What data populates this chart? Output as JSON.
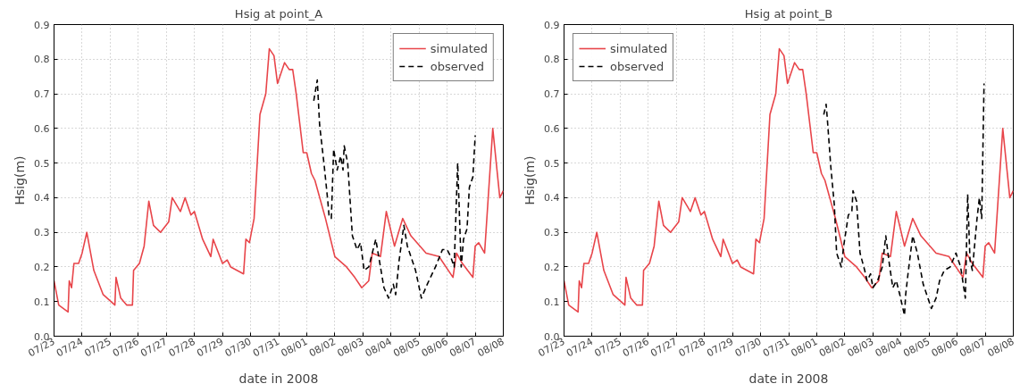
{
  "chart_data": [
    {
      "type": "line",
      "title": "Hsig at point_A",
      "xlabel": "date in 2008",
      "ylabel": "Hsig(m)",
      "xlim": [
        "2008-07-23",
        "2008-08-08"
      ],
      "xticks": [
        {
          "value": "2008-07-23",
          "label": "07/23"
        },
        {
          "value": "2008-07-24",
          "label": "07/24"
        },
        {
          "value": "2008-07-25",
          "label": "07/25"
        },
        {
          "value": "2008-07-26",
          "label": "07/26"
        },
        {
          "value": "2008-07-27",
          "label": "07/27"
        },
        {
          "value": "2008-07-28",
          "label": "07/28"
        },
        {
          "value": "2008-07-29",
          "label": "07/29"
        },
        {
          "value": "2008-07-30",
          "label": "07/30"
        },
        {
          "value": "2008-07-31",
          "label": "07/31"
        },
        {
          "value": "2008-08-01",
          "label": "08/01"
        },
        {
          "value": "2008-08-02",
          "label": "08/02"
        },
        {
          "value": "2008-08-03",
          "label": "08/03"
        },
        {
          "value": "2008-08-04",
          "label": "08/04"
        },
        {
          "value": "2008-08-05",
          "label": "08/05"
        },
        {
          "value": "2008-08-06",
          "label": "08/06"
        },
        {
          "value": "2008-08-07",
          "label": "08/07"
        },
        {
          "value": "2008-08-08",
          "label": "08/08"
        }
      ],
      "ylim": [
        0,
        0.9
      ],
      "yticks": [
        {
          "value": 0,
          "label": "0.0"
        },
        0.1,
        0.2,
        0.3,
        0.4,
        0.5,
        0.6,
        0.7,
        0.8,
        0.9
      ],
      "grid": true,
      "legend": "top right",
      "marker": "none",
      "series": [
        {
          "name": "simulated",
          "color": "#e8454a",
          "line_style": "solid",
          "x": [
            "2008-07-23T00:00",
            "2008-07-23T04:00",
            "2008-07-23T12:00",
            "2008-07-23T13:00",
            "2008-07-23T15:00",
            "2008-07-23T17:00",
            "2008-07-23T21:00",
            "2008-07-24T00:00",
            "2008-07-24T04:00",
            "2008-07-24T10:00",
            "2008-07-24T18:00",
            "2008-07-25T04:00",
            "2008-07-25T05:00",
            "2008-07-25T09:00",
            "2008-07-25T14:00",
            "2008-07-25T19:00",
            "2008-07-25T20:00",
            "2008-07-26T01:00",
            "2008-07-26T05:00",
            "2008-07-26T09:00",
            "2008-07-26T13:00",
            "2008-07-26T19:00",
            "2008-07-27T02:00",
            "2008-07-27T05:00",
            "2008-07-27T12:00",
            "2008-07-27T16:00",
            "2008-07-27T21:00",
            "2008-07-28T00:00",
            "2008-07-28T07:00",
            "2008-07-28T14:00",
            "2008-07-28T16:00",
            "2008-07-29T00:00",
            "2008-07-29T04:00",
            "2008-07-29T07:00",
            "2008-07-29T18:00",
            "2008-07-29T20:00",
            "2008-07-29T23:00",
            "2008-07-30T03:00",
            "2008-07-30T08:00",
            "2008-07-30T13:00",
            "2008-07-30T16:00",
            "2008-07-30T20:00",
            "2008-07-30T23:00",
            "2008-07-31T05:00",
            "2008-07-31T09:00",
            "2008-07-31T12:00",
            "2008-07-31T15:00",
            "2008-07-31T21:00",
            "2008-08-01T00:00",
            "2008-08-01T04:00",
            "2008-08-01T07:00",
            "2008-08-01T16:00",
            "2008-08-02T00:00",
            "2008-08-02T10:00",
            "2008-08-02T17:00",
            "2008-08-02T23:00",
            "2008-08-03T05:00",
            "2008-08-03T08:00",
            "2008-08-03T15:00",
            "2008-08-03T20:00",
            "2008-08-04T03:00",
            "2008-08-04T10:00",
            "2008-08-04T17:00",
            "2008-08-05T06:00",
            "2008-08-05T17:00",
            "2008-08-06T05:00",
            "2008-08-06T08:00",
            "2008-08-06T13:00",
            "2008-08-06T22:00",
            "2008-08-07T00:00",
            "2008-08-07T03:00",
            "2008-08-07T08:00",
            "2008-08-07T15:00",
            "2008-08-07T21:00",
            "2008-08-08T00:00"
          ],
          "values": [
            0.16,
            0.09,
            0.07,
            0.16,
            0.14,
            0.21,
            0.21,
            0.24,
            0.3,
            0.19,
            0.12,
            0.09,
            0.17,
            0.11,
            0.09,
            0.09,
            0.19,
            0.21,
            0.26,
            0.39,
            0.32,
            0.3,
            0.33,
            0.4,
            0.36,
            0.4,
            0.35,
            0.36,
            0.28,
            0.23,
            0.28,
            0.21,
            0.22,
            0.2,
            0.18,
            0.28,
            0.27,
            0.34,
            0.64,
            0.7,
            0.83,
            0.81,
            0.73,
            0.79,
            0.77,
            0.77,
            0.7,
            0.53,
            0.53,
            0.47,
            0.45,
            0.34,
            0.23,
            0.2,
            0.17,
            0.14,
            0.16,
            0.24,
            0.23,
            0.36,
            0.26,
            0.34,
            0.29,
            0.24,
            0.23,
            0.17,
            0.24,
            0.21,
            0.17,
            0.26,
            0.27,
            0.24,
            0.6,
            0.4,
            0.42
          ]
        },
        {
          "name": "observed",
          "color": "#000000",
          "line_style": "dashed",
          "x": [
            "2008-08-01T06:00",
            "2008-08-01T09:00",
            "2008-08-01T11:00",
            "2008-08-01T15:00",
            "2008-08-01T18:00",
            "2008-08-01T19:00",
            "2008-08-01T21:00",
            "2008-08-01T23:00",
            "2008-08-02T02:00",
            "2008-08-02T05:00",
            "2008-08-02T07:00",
            "2008-08-02T08:00",
            "2008-08-02T11:00",
            "2008-08-02T15:00",
            "2008-08-02T19:00",
            "2008-08-02T22:00",
            "2008-08-03T01:00",
            "2008-08-03T05:00",
            "2008-08-03T11:00",
            "2008-08-03T15:00",
            "2008-08-03T18:00",
            "2008-08-03T22:00",
            "2008-08-04T02:00",
            "2008-08-04T04:00",
            "2008-08-04T07:00",
            "2008-08-04T11:00",
            "2008-08-04T14:00",
            "2008-08-04T21:00",
            "2008-08-05T02:00",
            "2008-08-05T07:00",
            "2008-08-05T14:00",
            "2008-08-05T20:00",
            "2008-08-06T00:00",
            "2008-08-06T03:00",
            "2008-08-06T06:00",
            "2008-08-06T09:00",
            "2008-08-06T12:00",
            "2008-08-06T14:00",
            "2008-08-06T17:00",
            "2008-08-06T19:00",
            "2008-08-06T22:00",
            "2008-08-07T00:00"
          ],
          "values": [
            0.68,
            0.74,
            0.61,
            0.49,
            0.39,
            0.35,
            0.34,
            0.54,
            0.48,
            0.52,
            0.48,
            0.55,
            0.5,
            0.29,
            0.25,
            0.27,
            0.19,
            0.2,
            0.28,
            0.2,
            0.14,
            0.11,
            0.15,
            0.12,
            0.22,
            0.32,
            0.26,
            0.19,
            0.11,
            0.15,
            0.2,
            0.25,
            0.25,
            0.23,
            0.2,
            0.5,
            0.2,
            0.28,
            0.31,
            0.43,
            0.46,
            0.58
          ]
        }
      ]
    },
    {
      "type": "line",
      "title": "Hsig at point_B",
      "xlabel": "date in 2008",
      "ylabel": "Hsig(m)",
      "xlim": [
        "2008-07-23",
        "2008-08-08"
      ],
      "xticks": [
        {
          "value": "2008-07-23",
          "label": "07/23"
        },
        {
          "value": "2008-07-24",
          "label": "07/24"
        },
        {
          "value": "2008-07-25",
          "label": "07/25"
        },
        {
          "value": "2008-07-26",
          "label": "07/26"
        },
        {
          "value": "2008-07-27",
          "label": "07/27"
        },
        {
          "value": "2008-07-28",
          "label": "07/28"
        },
        {
          "value": "2008-07-29",
          "label": "07/29"
        },
        {
          "value": "2008-07-30",
          "label": "07/30"
        },
        {
          "value": "2008-07-31",
          "label": "07/31"
        },
        {
          "value": "2008-08-01",
          "label": "08/01"
        },
        {
          "value": "2008-08-02",
          "label": "08/02"
        },
        {
          "value": "2008-08-03",
          "label": "08/03"
        },
        {
          "value": "2008-08-04",
          "label": "08/04"
        },
        {
          "value": "2008-08-05",
          "label": "08/05"
        },
        {
          "value": "2008-08-06",
          "label": "08/06"
        },
        {
          "value": "2008-08-07",
          "label": "08/07"
        },
        {
          "value": "2008-08-08",
          "label": "08/08"
        }
      ],
      "ylim": [
        0,
        0.9
      ],
      "yticks": [
        {
          "value": 0,
          "label": "0.0"
        },
        0.1,
        0.2,
        0.3,
        0.4,
        0.5,
        0.6,
        0.7,
        0.8,
        0.9
      ],
      "grid": true,
      "legend": "top left",
      "marker": "none",
      "series": [
        {
          "name": "simulated",
          "color": "#e8454a",
          "line_style": "solid",
          "x": [
            "2008-07-23T00:00",
            "2008-07-23T04:00",
            "2008-07-23T12:00",
            "2008-07-23T13:00",
            "2008-07-23T15:00",
            "2008-07-23T17:00",
            "2008-07-23T21:00",
            "2008-07-24T00:00",
            "2008-07-24T04:00",
            "2008-07-24T10:00",
            "2008-07-24T18:00",
            "2008-07-25T04:00",
            "2008-07-25T05:00",
            "2008-07-25T09:00",
            "2008-07-25T14:00",
            "2008-07-25T19:00",
            "2008-07-25T20:00",
            "2008-07-26T01:00",
            "2008-07-26T05:00",
            "2008-07-26T09:00",
            "2008-07-26T13:00",
            "2008-07-26T19:00",
            "2008-07-27T02:00",
            "2008-07-27T05:00",
            "2008-07-27T12:00",
            "2008-07-27T16:00",
            "2008-07-27T21:00",
            "2008-07-28T00:00",
            "2008-07-28T07:00",
            "2008-07-28T14:00",
            "2008-07-28T16:00",
            "2008-07-29T00:00",
            "2008-07-29T04:00",
            "2008-07-29T07:00",
            "2008-07-29T18:00",
            "2008-07-29T20:00",
            "2008-07-29T23:00",
            "2008-07-30T03:00",
            "2008-07-30T08:00",
            "2008-07-30T13:00",
            "2008-07-30T16:00",
            "2008-07-30T20:00",
            "2008-07-30T23:00",
            "2008-07-31T05:00",
            "2008-07-31T09:00",
            "2008-07-31T12:00",
            "2008-07-31T15:00",
            "2008-07-31T21:00",
            "2008-08-01T00:00",
            "2008-08-01T04:00",
            "2008-08-01T07:00",
            "2008-08-01T16:00",
            "2008-08-02T00:00",
            "2008-08-02T10:00",
            "2008-08-02T17:00",
            "2008-08-02T23:00",
            "2008-08-03T05:00",
            "2008-08-03T08:00",
            "2008-08-03T15:00",
            "2008-08-03T20:00",
            "2008-08-04T03:00",
            "2008-08-04T10:00",
            "2008-08-04T17:00",
            "2008-08-05T06:00",
            "2008-08-05T17:00",
            "2008-08-06T05:00",
            "2008-08-06T08:00",
            "2008-08-06T13:00",
            "2008-08-06T22:00",
            "2008-08-07T00:00",
            "2008-08-07T03:00",
            "2008-08-07T08:00",
            "2008-08-07T15:00",
            "2008-08-07T21:00",
            "2008-08-08T00:00"
          ],
          "values": [
            0.16,
            0.09,
            0.07,
            0.16,
            0.14,
            0.21,
            0.21,
            0.24,
            0.3,
            0.19,
            0.12,
            0.09,
            0.17,
            0.11,
            0.09,
            0.09,
            0.19,
            0.21,
            0.26,
            0.39,
            0.32,
            0.3,
            0.33,
            0.4,
            0.36,
            0.4,
            0.35,
            0.36,
            0.28,
            0.23,
            0.28,
            0.21,
            0.22,
            0.2,
            0.18,
            0.28,
            0.27,
            0.34,
            0.64,
            0.7,
            0.83,
            0.81,
            0.73,
            0.79,
            0.77,
            0.77,
            0.7,
            0.53,
            0.53,
            0.47,
            0.45,
            0.34,
            0.23,
            0.2,
            0.17,
            0.14,
            0.16,
            0.24,
            0.23,
            0.36,
            0.26,
            0.34,
            0.29,
            0.24,
            0.23,
            0.17,
            0.24,
            0.21,
            0.17,
            0.26,
            0.27,
            0.24,
            0.6,
            0.4,
            0.42
          ]
        },
        {
          "name": "observed",
          "color": "#000000",
          "line_style": "dashed",
          "x": [
            "2008-08-01T06:00",
            "2008-08-01T08:00",
            "2008-08-01T09:00",
            "2008-08-01T12:00",
            "2008-08-01T15:00",
            "2008-08-01T17:00",
            "2008-08-01T21:00",
            "2008-08-01T23:00",
            "2008-08-02T03:00",
            "2008-08-02T06:00",
            "2008-08-02T07:00",
            "2008-08-02T10:00",
            "2008-08-02T13:00",
            "2008-08-02T17:00",
            "2008-08-02T19:00",
            "2008-08-02T22:00",
            "2008-08-03T00:00",
            "2008-08-03T04:00",
            "2008-08-03T08:00",
            "2008-08-03T11:00",
            "2008-08-03T14:00",
            "2008-08-03T17:00",
            "2008-08-03T20:00",
            "2008-08-03T23:00",
            "2008-08-04T01:00",
            "2008-08-04T03:00",
            "2008-08-04T04:00",
            "2008-08-04T06:00",
            "2008-08-04T10:00",
            "2008-08-04T14:00",
            "2008-08-04T19:00",
            "2008-08-04T23:00",
            "2008-08-05T02:00",
            "2008-08-05T06:00",
            "2008-08-05T09:00",
            "2008-08-05T13:00",
            "2008-08-05T18:00",
            "2008-08-05T23:00",
            "2008-08-06T03:00",
            "2008-08-06T07:00",
            "2008-08-06T09:00",
            "2008-08-06T11:00",
            "2008-08-06T13:00",
            "2008-08-06T17:00",
            "2008-08-06T19:00",
            "2008-08-06T21:00",
            "2008-08-06T23:00"
          ],
          "values": [
            0.64,
            0.67,
            0.63,
            0.49,
            0.38,
            0.24,
            0.2,
            0.26,
            0.35,
            0.36,
            0.42,
            0.39,
            0.24,
            0.19,
            0.16,
            0.18,
            0.14,
            0.16,
            0.2,
            0.29,
            0.21,
            0.14,
            0.16,
            0.12,
            0.09,
            0.06,
            0.12,
            0.18,
            0.29,
            0.24,
            0.15,
            0.11,
            0.08,
            0.11,
            0.16,
            0.19,
            0.2,
            0.24,
            0.2,
            0.11,
            0.41,
            0.22,
            0.19,
            0.34,
            0.4,
            0.34,
            0.73
          ]
        }
      ]
    }
  ]
}
